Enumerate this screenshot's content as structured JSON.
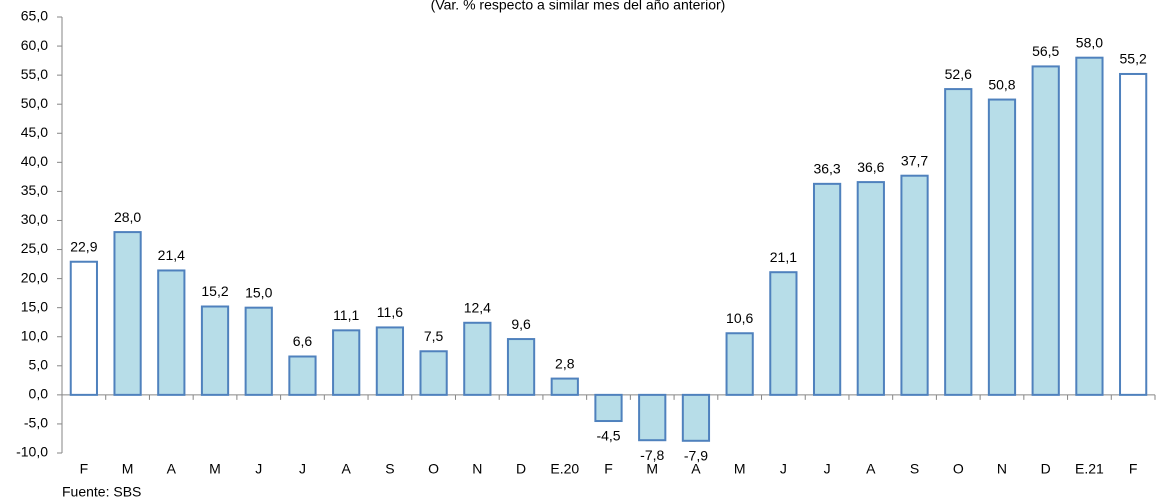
{
  "chart_data": {
    "type": "bar",
    "subtitle": "(Var. % respecto a similar mes del año anterior)",
    "source": "Fuente: SBS",
    "categories": [
      "F",
      "M",
      "A",
      "M",
      "J",
      "J",
      "A",
      "S",
      "O",
      "N",
      "D",
      "E.20",
      "F",
      "M",
      "A",
      "M",
      "J",
      "J",
      "A",
      "S",
      "O",
      "N",
      "D",
      "E.21",
      "F"
    ],
    "values": [
      22.9,
      28.0,
      21.4,
      15.2,
      15.0,
      6.6,
      11.1,
      11.6,
      7.5,
      12.4,
      9.6,
      2.8,
      -4.5,
      -7.8,
      -7.9,
      10.6,
      21.1,
      36.3,
      36.6,
      37.7,
      52.6,
      50.8,
      56.5,
      58.0,
      55.2
    ],
    "value_labels": [
      "22,9",
      "28,0",
      "21,4",
      "15,2",
      "15,0",
      "6,6",
      "11,1",
      "11,6",
      "7,5",
      "12,4",
      "9,6",
      "2,8",
      "-4,5",
      "-7,8",
      "-7,9",
      "10,6",
      "21,1",
      "36,3",
      "36,6",
      "37,7",
      "52,6",
      "50,8",
      "56,5",
      "58,0",
      "55,2"
    ],
    "colors": [
      "#ffffff",
      "#b7dde8",
      "#b7dde8",
      "#b7dde8",
      "#b7dde8",
      "#b7dde8",
      "#b7dde8",
      "#b7dde8",
      "#b7dde8",
      "#b7dde8",
      "#b7dde8",
      "#b7dde8",
      "#b7dde8",
      "#b7dde8",
      "#b7dde8",
      "#b7dde8",
      "#b7dde8",
      "#b7dde8",
      "#b7dde8",
      "#b7dde8",
      "#b7dde8",
      "#b7dde8",
      "#b7dde8",
      "#b7dde8",
      "#ffffff"
    ],
    "border_color": "#4f81bd",
    "ylim": [
      -10,
      65
    ],
    "yticks": [
      {
        "value": -10,
        "label": "-10,0"
      },
      {
        "value": -5,
        "label": "-5,0"
      },
      {
        "value": 0,
        "label": "0,0"
      },
      {
        "value": 5,
        "label": "5,0"
      },
      {
        "value": 10,
        "label": "10,0"
      },
      {
        "value": 15,
        "label": "15,0"
      },
      {
        "value": 20,
        "label": "20,0"
      },
      {
        "value": 25,
        "label": "25,0"
      },
      {
        "value": 30,
        "label": "30,0"
      },
      {
        "value": 35,
        "label": "35,0"
      },
      {
        "value": 40,
        "label": "40,0"
      },
      {
        "value": 45,
        "label": "45,0"
      },
      {
        "value": 50,
        "label": "50,0"
      },
      {
        "value": 55,
        "label": "55,0"
      },
      {
        "value": 60,
        "label": "60,0"
      },
      {
        "value": 65,
        "label": "65,0"
      }
    ],
    "grid": false
  }
}
